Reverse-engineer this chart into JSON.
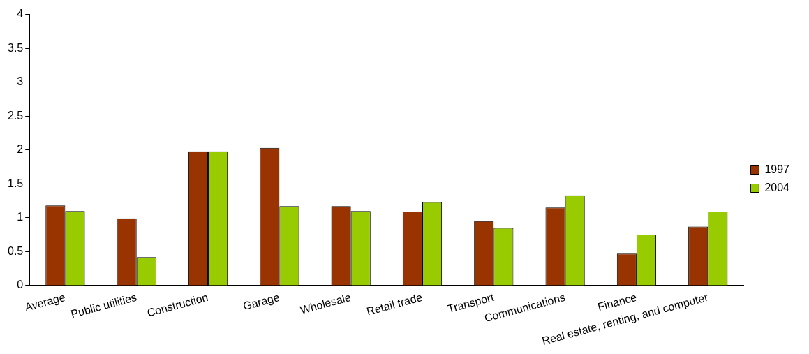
{
  "chart_data": {
    "type": "bar",
    "categories": [
      "Average",
      "Public utilities",
      "Construction",
      "Garage",
      "Wholesale",
      "Retail trade",
      "Transport",
      "Communications",
      "Finance",
      "Real estate, renting, and computer"
    ],
    "series": [
      {
        "name": "1997",
        "color": "#993300",
        "values": [
          1.18,
          0.99,
          1.98,
          2.03,
          1.17,
          1.09,
          0.95,
          1.15,
          0.47,
          0.87
        ]
      },
      {
        "name": "2004",
        "color": "#99cc00",
        "values": [
          1.1,
          0.42,
          1.98,
          1.17,
          1.1,
          1.23,
          0.85,
          1.33,
          0.75,
          1.09
        ]
      }
    ],
    "ylim": [
      0,
      4
    ],
    "yticks": [
      0,
      0.5,
      1,
      1.5,
      2,
      2.5,
      3,
      3.5,
      4
    ],
    "grid": false,
    "legend": "right"
  }
}
